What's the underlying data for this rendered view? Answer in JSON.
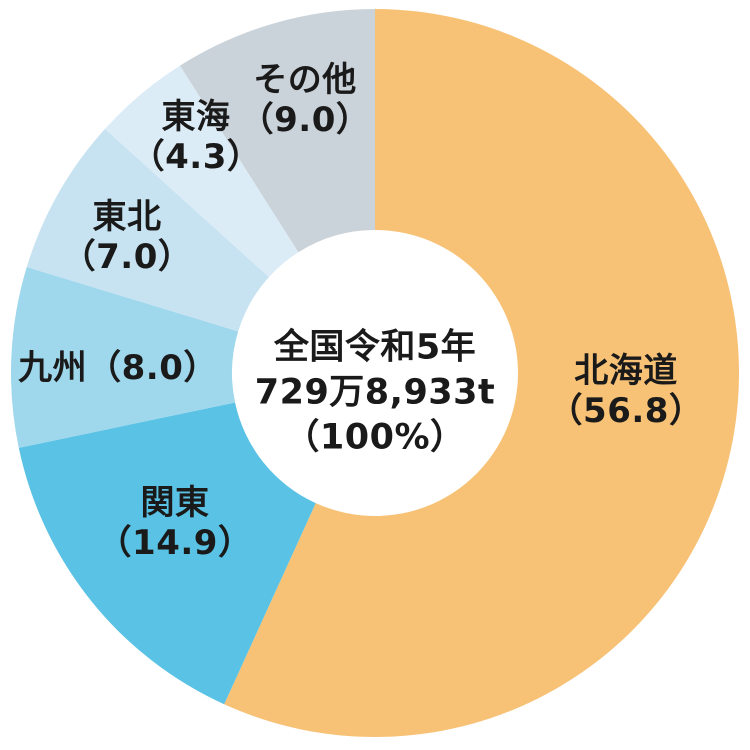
{
  "chart_data": {
    "type": "pie",
    "subtype": "donut",
    "title": "",
    "unit": "%",
    "direction": "clockwise",
    "start_angle_deg": 0,
    "categories": [
      "北海道",
      "関東",
      "九州",
      "東北",
      "東海",
      "その他"
    ],
    "values": [
      56.8,
      14.9,
      8.0,
      7.0,
      4.3,
      9.0
    ],
    "colors": [
      "#F7C276",
      "#5AC2E4",
      "#9FD7EC",
      "#C7E3F2",
      "#DCECF7",
      "#CBD3DA"
    ],
    "ids": [
      "hokkaido",
      "kanto",
      "kyushu",
      "tohoku",
      "tokai",
      "other"
    ],
    "labels": [
      {
        "line1": "北海道",
        "line2": "（56.8）"
      },
      {
        "line1": "関東",
        "line2": "（14.9）"
      },
      {
        "line1": "九州（8.0）",
        "line2": ""
      },
      {
        "line1": "東北",
        "line2": "（7.0）"
      },
      {
        "line1": "東海",
        "line2": "（4.3）"
      },
      {
        "line1": "その他",
        "line2": "（9.0）"
      }
    ],
    "center_label": {
      "line1": "全国令和5年",
      "line2": "729万8,933t",
      "line3": "（100%）"
    },
    "text_color": "#1a1a1a",
    "background_color": "#ffffff"
  }
}
